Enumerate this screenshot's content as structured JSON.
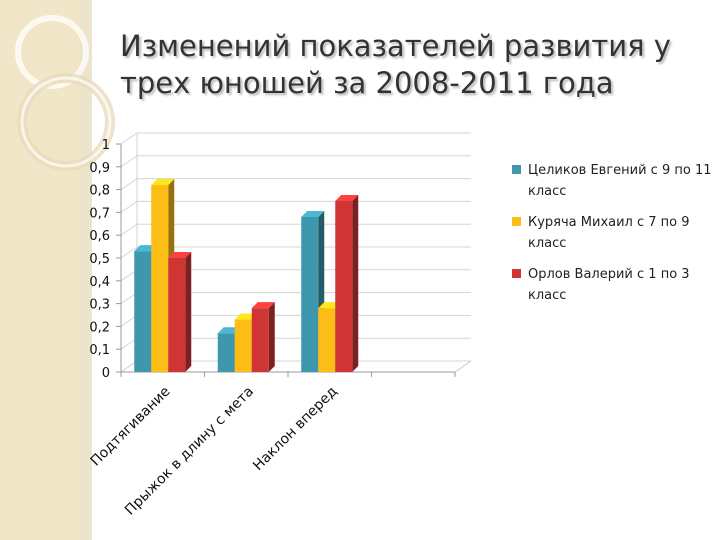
{
  "slide": {
    "title": "Изменений показателей развития у трех юношей за 2008-2011 года"
  },
  "chart_data": {
    "type": "bar",
    "categories": [
      "Подтягивание",
      "Прыжок в длину с мета",
      "Наклон вперед",
      ""
    ],
    "series": [
      {
        "name": "Целиков Евгений с 9 по 11 класс",
        "values": [
          0.53,
          0.17,
          0.68,
          null
        ],
        "color": "#3d98ad"
      },
      {
        "name": "Куряча Михаил с 7 по 9 класс",
        "values": [
          0.82,
          0.23,
          0.28,
          null
        ],
        "color": "#fbbd16"
      },
      {
        "name": "Орлов Валерий с 1 по 3 класс",
        "values": [
          0.5,
          0.28,
          0.75,
          null
        ],
        "color": "#cf3535"
      }
    ],
    "ylim": [
      0,
      1
    ],
    "yticks": [
      "0",
      "0,1",
      "0,2",
      "0,3",
      "0,4",
      "0,5",
      "0,6",
      "0,7",
      "0,8",
      "0,9",
      "1"
    ],
    "grid": true,
    "legend_position": "right",
    "style": "3d-clustered-column"
  }
}
